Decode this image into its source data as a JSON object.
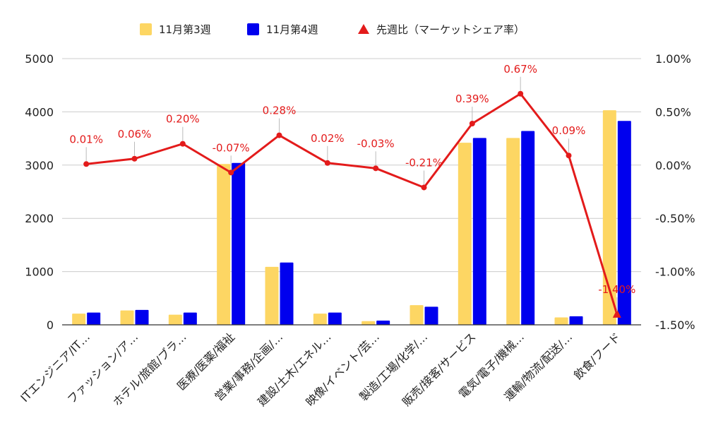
{
  "chart_data": {
    "type": "bar",
    "categories": [
      "ITエンジニア/IT…",
      "ファッション/ア…",
      "ホテル/旅館/ブラ…",
      "医療/医薬/福祉",
      "営業/事務/企画/…",
      "建設/土木/エネル…",
      "映像/イベント/芸…",
      "製造/工場/化学/…",
      "販売/接客/サービス",
      "電気/電子/機械…",
      "運輸/物流/配送/…",
      "飲食/フード"
    ],
    "series": [
      {
        "name": "11月第3週",
        "kind": "bar",
        "axis": "left",
        "color": "#fdd663",
        "values": [
          210,
          270,
          190,
          3020,
          1090,
          210,
          70,
          370,
          3420,
          3510,
          140,
          4030
        ]
      },
      {
        "name": "11月第4週",
        "kind": "bar",
        "axis": "left",
        "color": "#0000ee",
        "values": [
          230,
          280,
          230,
          3040,
          1170,
          230,
          80,
          340,
          3510,
          3640,
          160,
          3830
        ]
      },
      {
        "name": "先週比（マーケットシェア率）",
        "kind": "line",
        "axis": "right",
        "color": "#e31b1b",
        "values": [
          0.01,
          0.06,
          0.2,
          -0.07,
          0.28,
          0.02,
          -0.03,
          -0.21,
          0.39,
          0.67,
          0.09,
          -1.4
        ],
        "labels": [
          "0.01%",
          "0.06%",
          "0.20%",
          "-0.07%",
          "0.28%",
          "0.02%",
          "-0.03%",
          "-0.21%",
          "0.39%",
          "0.67%",
          "0.09%",
          "-1.40%"
        ]
      }
    ],
    "left_axis": {
      "ylim": [
        0,
        5000
      ],
      "ticks": [
        "0",
        "1000",
        "2000",
        "3000",
        "4000",
        "5000"
      ]
    },
    "right_axis": {
      "ylim": [
        -1.5,
        1.0
      ],
      "ticks": [
        "-1.50%",
        "-1.00%",
        "-0.50%",
        "0.00%",
        "0.50%",
        "1.00%"
      ]
    },
    "grid": true,
    "legend_position": "top"
  }
}
